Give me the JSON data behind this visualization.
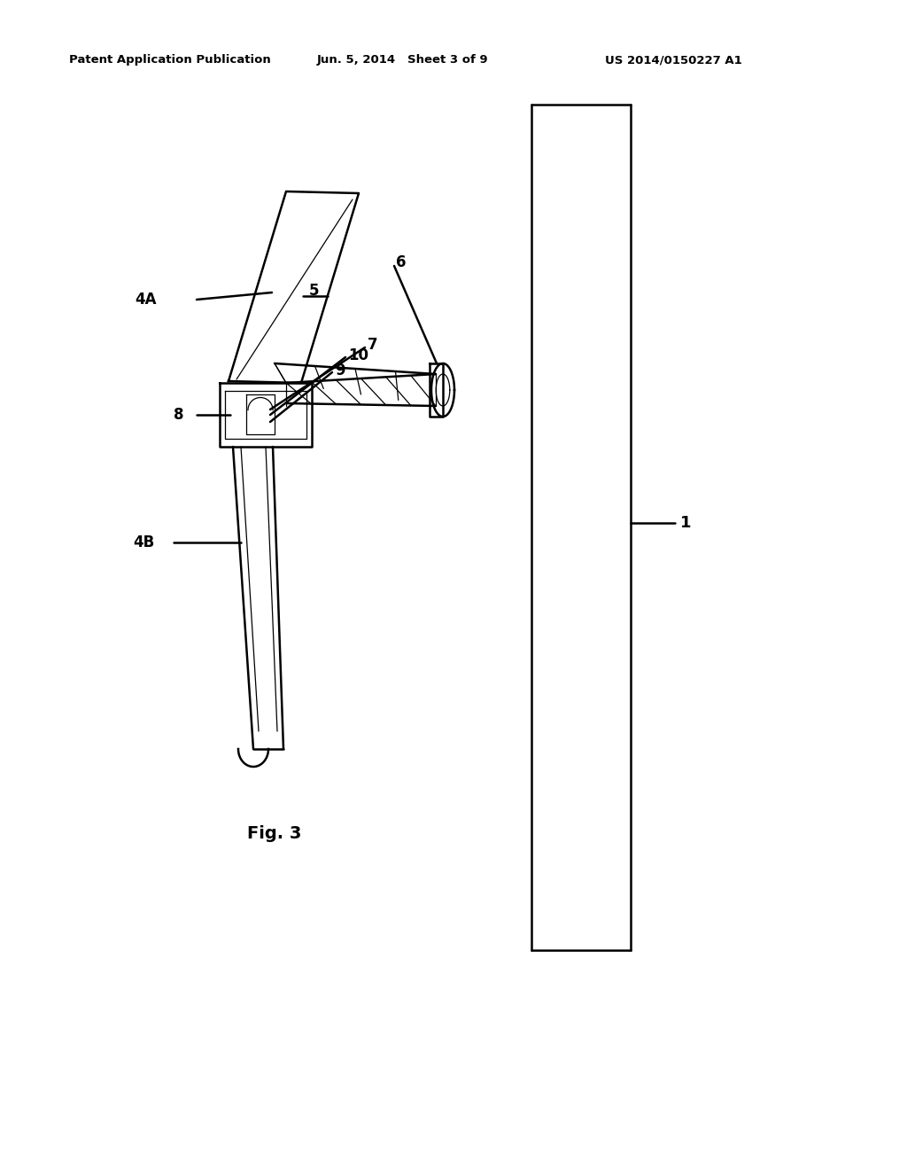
{
  "bg_color": "#ffffff",
  "header_left": "Patent Application Publication",
  "header_mid": "Jun. 5, 2014   Sheet 3 of 9",
  "header_right": "US 2014/0150227 A1",
  "fig_caption": "Fig. 3",
  "line_color": "#000000",
  "lw_main": 1.8,
  "lw_thin": 0.9
}
